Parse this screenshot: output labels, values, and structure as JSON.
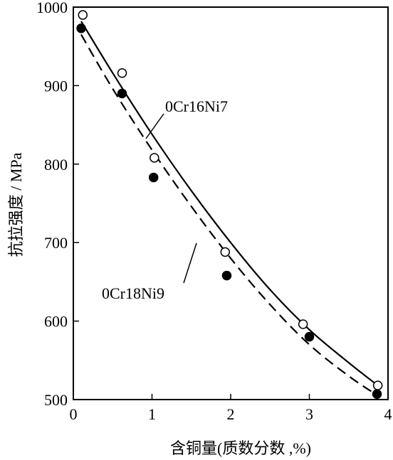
{
  "chart_data": {
    "type": "scatter",
    "title": "",
    "xlabel": "含铜量(质数分数 ,%)",
    "ylabel": "抗拉强度 / MPa",
    "xlim": [
      0,
      4
    ],
    "ylim": [
      500,
      1000
    ],
    "xticks": [
      "0",
      "1",
      "2",
      "3",
      "4"
    ],
    "yticks": [
      "500",
      "600",
      "700",
      "800",
      "900",
      "1000"
    ],
    "grid": false,
    "legend": "none",
    "series": [
      {
        "name": "0Cr16Ni7",
        "marker": "open-circle",
        "line": "solid",
        "points": [
          {
            "x": 0.12,
            "y": 990
          },
          {
            "x": 0.62,
            "y": 916
          },
          {
            "x": 1.03,
            "y": 808
          },
          {
            "x": 1.93,
            "y": 688
          },
          {
            "x": 2.92,
            "y": 596
          },
          {
            "x": 3.87,
            "y": 518
          }
        ],
        "curve": [
          {
            "x": 0.1,
            "y": 982
          },
          {
            "x": 0.5,
            "y": 916
          },
          {
            "x": 1.0,
            "y": 838
          },
          {
            "x": 1.5,
            "y": 766
          },
          {
            "x": 2.0,
            "y": 700
          },
          {
            "x": 2.5,
            "y": 640
          },
          {
            "x": 3.0,
            "y": 589
          },
          {
            "x": 3.5,
            "y": 547
          },
          {
            "x": 3.87,
            "y": 518
          }
        ]
      },
      {
        "name": "0Cr18Ni9",
        "marker": "filled-circle",
        "line": "dashed",
        "points": [
          {
            "x": 0.1,
            "y": 973
          },
          {
            "x": 0.62,
            "y": 890
          },
          {
            "x": 1.02,
            "y": 783
          },
          {
            "x": 1.95,
            "y": 658
          },
          {
            "x": 3.0,
            "y": 580
          },
          {
            "x": 3.86,
            "y": 507
          }
        ],
        "curve": [
          {
            "x": 0.1,
            "y": 965
          },
          {
            "x": 0.5,
            "y": 896
          },
          {
            "x": 1.0,
            "y": 818
          },
          {
            "x": 1.5,
            "y": 746
          },
          {
            "x": 2.0,
            "y": 680
          },
          {
            "x": 2.5,
            "y": 621
          },
          {
            "x": 3.0,
            "y": 570
          },
          {
            "x": 3.5,
            "y": 530
          },
          {
            "x": 3.87,
            "y": 505
          }
        ]
      }
    ],
    "annotations": [
      {
        "text": "0Cr16Ni7",
        "series": "0Cr16Ni7"
      },
      {
        "text": "0Cr18Ni9",
        "series": "0Cr18Ni9"
      }
    ]
  }
}
